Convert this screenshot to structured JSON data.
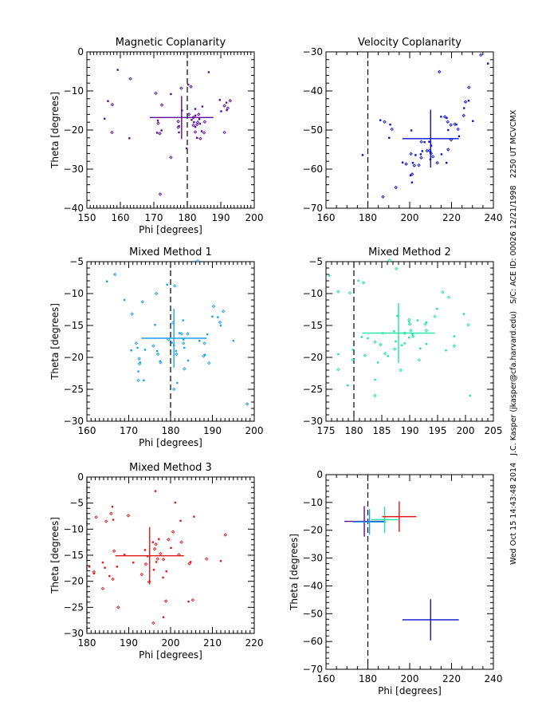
{
  "side_annotation": "Wed Oct 15 14:43:48 2014   J.C. Kasper (jkasper@cfa.harvard.edu)   S/C: ACE ID: 00026 12/21/1998   2250 UT MCVCMX",
  "chart_data": [
    {
      "type": "scatter",
      "id": "magnetic-coplanarity",
      "title": "Magnetic Coplanarity",
      "xlabel": "Phi [degrees]",
      "ylabel": "Theta [degrees]",
      "xlim": [
        150,
        200
      ],
      "ylim": [
        -40,
        0
      ],
      "xticks": [
        150,
        160,
        170,
        180,
        190,
        200
      ],
      "yticks": [
        0,
        -10,
        -20,
        -30,
        -40
      ],
      "color": "#5a0a9b",
      "reference_line_x": 180,
      "mean": {
        "phi": 178.3,
        "theta": -16.8,
        "phi_err": 9.5,
        "theta_err": 5.5
      },
      "points": [
        [
          159.2,
          -4.6
        ],
        [
          163,
          -6.9
        ],
        [
          156.3,
          -12.6
        ],
        [
          157.6,
          -13.5
        ],
        [
          155.3,
          -17.1
        ],
        [
          157.5,
          -20.6
        ],
        [
          162.7,
          -22.1
        ],
        [
          170.6,
          -10.6
        ],
        [
          175.1,
          -10.8
        ],
        [
          172.4,
          -13.6
        ],
        [
          171.2,
          -17.6
        ],
        [
          171.3,
          -18.3
        ],
        [
          172.3,
          -20.1
        ],
        [
          171.8,
          -20.9
        ],
        [
          171,
          -20.7
        ],
        [
          177.3,
          -17.8
        ],
        [
          177.5,
          -19
        ],
        [
          177.3,
          -19.3
        ],
        [
          177.5,
          -20.6
        ],
        [
          178.2,
          -9.3
        ],
        [
          180.3,
          -8.4
        ],
        [
          181.1,
          -8.9
        ],
        [
          178.4,
          -15
        ],
        [
          180.5,
          -16
        ],
        [
          181.3,
          -17.4
        ],
        [
          181.8,
          -16.8
        ],
        [
          182,
          -18
        ],
        [
          181.8,
          -18.8
        ],
        [
          182.4,
          -19.2
        ],
        [
          182.9,
          -18.6
        ],
        [
          182.4,
          -16.3
        ],
        [
          183.4,
          -16
        ],
        [
          183.6,
          -17.2
        ],
        [
          183.1,
          -18
        ],
        [
          184.5,
          -14
        ],
        [
          182.4,
          -20.5
        ],
        [
          183.8,
          -18.4
        ],
        [
          185.2,
          -17.9
        ],
        [
          184.3,
          -20.3
        ],
        [
          185,
          -20.7
        ],
        [
          182.9,
          -22
        ],
        [
          183.9,
          -22.2
        ],
        [
          179.8,
          -24.7
        ],
        [
          175.1,
          -27
        ],
        [
          186.4,
          -5.2
        ],
        [
          171.9,
          -36.4
        ],
        [
          189.7,
          -12.3
        ],
        [
          191.1,
          -13.8
        ],
        [
          191.7,
          -13
        ],
        [
          192.8,
          -12.5
        ],
        [
          190.1,
          -15.2
        ],
        [
          192.1,
          -14.4
        ],
        [
          191.8,
          -14.9
        ],
        [
          191.1,
          -20.6
        ],
        [
          182.4,
          -14.6
        ]
      ]
    },
    {
      "type": "scatter",
      "id": "velocity-coplanarity",
      "title": "Velocity Coplanarity",
      "xlabel": "",
      "ylabel": "",
      "xlim": [
        160,
        240
      ],
      "ylim": [
        -70,
        -30
      ],
      "xticks": [
        160,
        180,
        200,
        220,
        240
      ],
      "yticks": [
        -30,
        -40,
        -50,
        -60,
        -70
      ],
      "color": "#0a10d0",
      "reference_line_x": 180,
      "mean": {
        "phi": 210,
        "theta": -52.2,
        "phi_err": 13.5,
        "theta_err": 7.4
      },
      "points": [
        [
          177.5,
          -56.4
        ],
        [
          187.2,
          -67.1
        ],
        [
          186,
          -47.5
        ],
        [
          188,
          -47.9
        ],
        [
          190.7,
          -48.6
        ],
        [
          191.5,
          -49.8
        ],
        [
          190.2,
          -52
        ],
        [
          193.4,
          -64.7
        ],
        [
          196.6,
          -58.3
        ],
        [
          198.3,
          -58.7
        ],
        [
          200.4,
          -61.6
        ],
        [
          201.2,
          -61.3
        ],
        [
          201.1,
          -63.4
        ],
        [
          200.6,
          -56.1
        ],
        [
          201.5,
          -58.4
        ],
        [
          202.2,
          -59.1
        ],
        [
          202.8,
          -56.4
        ],
        [
          204.4,
          -59
        ],
        [
          205.3,
          -56.2
        ],
        [
          205.5,
          -57.1
        ],
        [
          206,
          -55.4
        ],
        [
          205.6,
          -53
        ],
        [
          207.1,
          -53.1
        ],
        [
          208.3,
          -55.3
        ],
        [
          209.3,
          -53
        ],
        [
          209.5,
          -55.3
        ],
        [
          210,
          -55.6
        ],
        [
          210.2,
          -56
        ],
        [
          210.3,
          -54
        ],
        [
          211.1,
          -56.8
        ],
        [
          209.9,
          -57.5
        ],
        [
          213.2,
          -58.4
        ],
        [
          200.8,
          -50.1
        ],
        [
          214.2,
          -35.1
        ],
        [
          215,
          -46.6
        ],
        [
          216.8,
          -46.6
        ],
        [
          217.7,
          -46.9
        ],
        [
          218.2,
          -47.9
        ],
        [
          218.4,
          -50
        ],
        [
          219.7,
          -48.7
        ],
        [
          217.6,
          -58.4
        ],
        [
          218.4,
          -55
        ],
        [
          215.2,
          -56.2
        ],
        [
          221.6,
          -48.5
        ],
        [
          222.3,
          -48.6
        ],
        [
          223.1,
          -49.8
        ],
        [
          223.6,
          -51.6
        ],
        [
          225.8,
          -46.3
        ],
        [
          226,
          -44.4
        ],
        [
          226.7,
          -42.8
        ],
        [
          228.2,
          -42.5
        ],
        [
          228.3,
          -39.1
        ],
        [
          230.2,
          -47.7
        ],
        [
          234,
          -30.8
        ],
        [
          237.4,
          -33
        ],
        [
          219.8,
          -52.5
        ]
      ]
    },
    {
      "type": "scatter",
      "id": "mixed-method-1",
      "title": "Mixed Method 1",
      "xlabel": "Phi [degrees]",
      "ylabel": "Theta [degrees]",
      "xlim": [
        160,
        200
      ],
      "ylim": [
        -30,
        -5
      ],
      "xticks": [
        160,
        170,
        180,
        190,
        200
      ],
      "yticks": [
        -5,
        -10,
        -15,
        -20,
        -25,
        -30
      ],
      "color": "#1aa0f0",
      "reference_line_x": 180,
      "mean": {
        "phi": 180.8,
        "theta": -17,
        "phi_err": 7.8,
        "theta_err": 4.6
      },
      "points": [
        [
          164.8,
          -8.1
        ],
        [
          166.7,
          -7
        ],
        [
          169,
          -11
        ],
        [
          170.8,
          -13.2
        ],
        [
          170.6,
          -18.9
        ],
        [
          171.8,
          -17.8
        ],
        [
          172.1,
          -18.5
        ],
        [
          172.5,
          -20.2
        ],
        [
          172.7,
          -20.8
        ],
        [
          172.6,
          -21
        ],
        [
          172.3,
          -22.2
        ],
        [
          172.3,
          -23.6
        ],
        [
          173.6,
          -23.6
        ],
        [
          173.3,
          -11.3
        ],
        [
          173.9,
          -18.8
        ],
        [
          175.9,
          -18.2
        ],
        [
          176.3,
          -14.9
        ],
        [
          176.6,
          -10
        ],
        [
          176.8,
          -19
        ],
        [
          177,
          -19.5
        ],
        [
          177.5,
          -20.6
        ],
        [
          177.6,
          -20.8
        ],
        [
          179.2,
          -8.6
        ],
        [
          179.5,
          -17.2
        ],
        [
          180.3,
          -17.7
        ],
        [
          180.6,
          -14.6
        ],
        [
          180.8,
          -18.1
        ],
        [
          181,
          -8.8
        ],
        [
          181.3,
          -19
        ],
        [
          181.4,
          -19.5
        ],
        [
          181.6,
          -24
        ],
        [
          180.8,
          -25
        ],
        [
          182.1,
          -16.2
        ],
        [
          182.6,
          -16.3
        ],
        [
          183.1,
          -17.2
        ],
        [
          183.1,
          -17.8
        ],
        [
          183.3,
          -18.5
        ],
        [
          183.3,
          -21.8
        ],
        [
          183,
          -14.2
        ],
        [
          184.1,
          -16.3
        ],
        [
          184.2,
          -20.5
        ],
        [
          186.5,
          -4.9
        ],
        [
          186.9,
          -17.4
        ],
        [
          188.1,
          -17.8
        ],
        [
          188.2,
          -19.6
        ],
        [
          187.9,
          -19.8
        ],
        [
          188.8,
          -16.4
        ],
        [
          189.2,
          -20.9
        ],
        [
          190,
          -13.6
        ],
        [
          190.3,
          -12
        ],
        [
          191.3,
          -13.7
        ],
        [
          191.8,
          -14.5
        ],
        [
          192,
          -15
        ],
        [
          192.6,
          -12.8
        ],
        [
          195,
          -17.4
        ],
        [
          198.3,
          -27.3
        ]
      ]
    },
    {
      "type": "scatter",
      "id": "mixed-method-2",
      "title": "Mixed Method 2",
      "xlabel": "",
      "ylabel": "",
      "xlim": [
        175,
        205
      ],
      "ylim": [
        -30,
        -5
      ],
      "xticks": [
        175,
        180,
        185,
        190,
        195,
        200,
        205
      ],
      "yticks": [
        -5,
        -10,
        -15,
        -20,
        -25,
        -30
      ],
      "color": "#18e8a0",
      "reference_line_x": 180,
      "mean": {
        "phi": 188,
        "theta": -16.2,
        "phi_err": 6.5,
        "theta_err": 4.7
      },
      "points": [
        [
          175.6,
          -7.2
        ],
        [
          177.2,
          -9.7
        ],
        [
          177.2,
          -19.5
        ],
        [
          177.2,
          -21.9
        ],
        [
          178.9,
          -24.4
        ],
        [
          179.3,
          -9.9
        ],
        [
          179.8,
          -18.8
        ],
        [
          179.8,
          -20.4
        ],
        [
          180.8,
          -8
        ],
        [
          181.7,
          -8.3
        ],
        [
          181.4,
          -16.8
        ],
        [
          182,
          -19.7
        ],
        [
          182.5,
          -17
        ],
        [
          183.8,
          -17.6
        ],
        [
          183.8,
          -23.5
        ],
        [
          183.8,
          -26
        ],
        [
          184.3,
          -20.8
        ],
        [
          184.8,
          -18
        ],
        [
          185.2,
          -16.2
        ],
        [
          185.6,
          -19.4
        ],
        [
          186.1,
          -19.8
        ],
        [
          186.4,
          -4.8
        ],
        [
          187.2,
          -15.9
        ],
        [
          187.3,
          -18.7
        ],
        [
          187.5,
          -17.5
        ],
        [
          187.6,
          -6.1
        ],
        [
          187.8,
          -13.5
        ],
        [
          188.4,
          -22
        ],
        [
          188.6,
          -18.1
        ],
        [
          189.1,
          -16.2
        ],
        [
          189.1,
          -17.8
        ],
        [
          189.9,
          -14.1
        ],
        [
          189.9,
          -14.4
        ],
        [
          190,
          -14.8
        ],
        [
          189.9,
          -16.9
        ],
        [
          190.2,
          -15.8
        ],
        [
          190.5,
          -16.4
        ],
        [
          190.6,
          -16.7
        ],
        [
          191.4,
          -14.2
        ],
        [
          191.7,
          -20.4
        ],
        [
          191.9,
          -18.6
        ],
        [
          192.8,
          -14.8
        ],
        [
          193,
          -14.5
        ],
        [
          193,
          -15.8
        ],
        [
          193,
          -17.9
        ],
        [
          194.5,
          -13.6
        ],
        [
          194.9,
          -12.4
        ],
        [
          195.9,
          -9.8
        ],
        [
          196.5,
          -18.9
        ],
        [
          197,
          -10.6
        ],
        [
          198,
          -16.7
        ],
        [
          198,
          -18.2
        ],
        [
          199.7,
          -13.2
        ],
        [
          200.5,
          -14.9
        ],
        [
          200.8,
          -26
        ]
      ]
    },
    {
      "type": "scatter",
      "id": "mixed-method-3",
      "title": "Mixed Method 3",
      "xlabel": "Phi [degrees]",
      "ylabel": "Theta [degrees]",
      "xlim": [
        180,
        220
      ],
      "ylim": [
        -30,
        0
      ],
      "xticks": [
        180,
        190,
        200,
        210,
        220
      ],
      "yticks": [
        0,
        -5,
        -10,
        -15,
        -20,
        -25,
        -30
      ],
      "color": "#e01818",
      "reference_line_x": 180,
      "mean": {
        "phi": 195,
        "theta": -15.1,
        "phi_err": 8.2,
        "theta_err": 5.5
      },
      "points": [
        [
          180.6,
          -17.2
        ],
        [
          181.7,
          -18.2
        ],
        [
          181.7,
          -18.5
        ],
        [
          182.2,
          -7.7
        ],
        [
          183.8,
          -16.4
        ],
        [
          183.8,
          -21.4
        ],
        [
          184.3,
          -17.4
        ],
        [
          184.6,
          -8.5
        ],
        [
          185.4,
          -19
        ],
        [
          185.8,
          -7
        ],
        [
          186.1,
          -5.7
        ],
        [
          186.2,
          -19.6
        ],
        [
          186.3,
          -8.2
        ],
        [
          186.5,
          -14.2
        ],
        [
          187.2,
          -17.2
        ],
        [
          187.5,
          -25
        ],
        [
          189,
          -14.9
        ],
        [
          189.9,
          -7.4
        ],
        [
          191.1,
          -16.4
        ],
        [
          193.1,
          -18.7
        ],
        [
          193.9,
          -14
        ],
        [
          194.1,
          -16.7
        ],
        [
          194.5,
          -15.2
        ],
        [
          194.9,
          -20.1
        ],
        [
          195.8,
          -12.5
        ],
        [
          195.9,
          -28
        ],
        [
          196,
          -17.8
        ],
        [
          196.2,
          -13.8
        ],
        [
          196.4,
          -2.7
        ],
        [
          196.5,
          -12.9
        ],
        [
          196.6,
          -16.3
        ],
        [
          196.9,
          -15.7
        ],
        [
          197.2,
          -11.9
        ],
        [
          197.6,
          -14.7
        ],
        [
          198.2,
          -19.3
        ],
        [
          198.3,
          -15.8
        ],
        [
          198.3,
          -26.9
        ],
        [
          198.9,
          -23.8
        ],
        [
          199,
          -18.1
        ],
        [
          199.5,
          -12
        ],
        [
          200.1,
          -13.6
        ],
        [
          200.6,
          -10.5
        ],
        [
          201.1,
          -4.9
        ],
        [
          202,
          -14.9
        ],
        [
          202.4,
          -8.4
        ],
        [
          202.6,
          -12.5
        ],
        [
          204.3,
          -23.9
        ],
        [
          204.5,
          -16.6
        ],
        [
          204.8,
          -16.3
        ],
        [
          205.3,
          -23.6
        ],
        [
          205.6,
          -7.6
        ],
        [
          208.6,
          -15.7
        ],
        [
          212,
          -16.1
        ],
        [
          213.1,
          -11.1
        ]
      ]
    },
    {
      "type": "scatter",
      "id": "method-summary",
      "title": "",
      "xlabel": "Phi [degrees]",
      "ylabel": "Theta [degrees]",
      "xlim": [
        160,
        240
      ],
      "ylim": [
        -70,
        0
      ],
      "xticks": [
        160,
        180,
        200,
        220,
        240
      ],
      "yticks": [
        0,
        -10,
        -20,
        -30,
        -40,
        -50,
        -60,
        -70
      ],
      "reference_line_x": 180,
      "crosses": [
        {
          "name": "Magnetic Coplanarity",
          "color": "#5a0a9b",
          "phi": 178.3,
          "theta": -16.8,
          "phi_err": 9.5,
          "theta_err": 5.5
        },
        {
          "name": "Velocity Coplanarity",
          "color": "#0a10d0",
          "phi": 210,
          "theta": -52.2,
          "phi_err": 13.5,
          "theta_err": 7.4
        },
        {
          "name": "Mixed Method 1",
          "color": "#1aa0f0",
          "phi": 180.8,
          "theta": -17,
          "phi_err": 7.8,
          "theta_err": 4.6
        },
        {
          "name": "Mixed Method 2",
          "color": "#18e8a0",
          "phi": 188,
          "theta": -16.2,
          "phi_err": 6.5,
          "theta_err": 4.7
        },
        {
          "name": "Mixed Method 3",
          "color": "#e01818",
          "phi": 195,
          "theta": -15.1,
          "phi_err": 8.2,
          "theta_err": 5.5
        }
      ]
    }
  ]
}
